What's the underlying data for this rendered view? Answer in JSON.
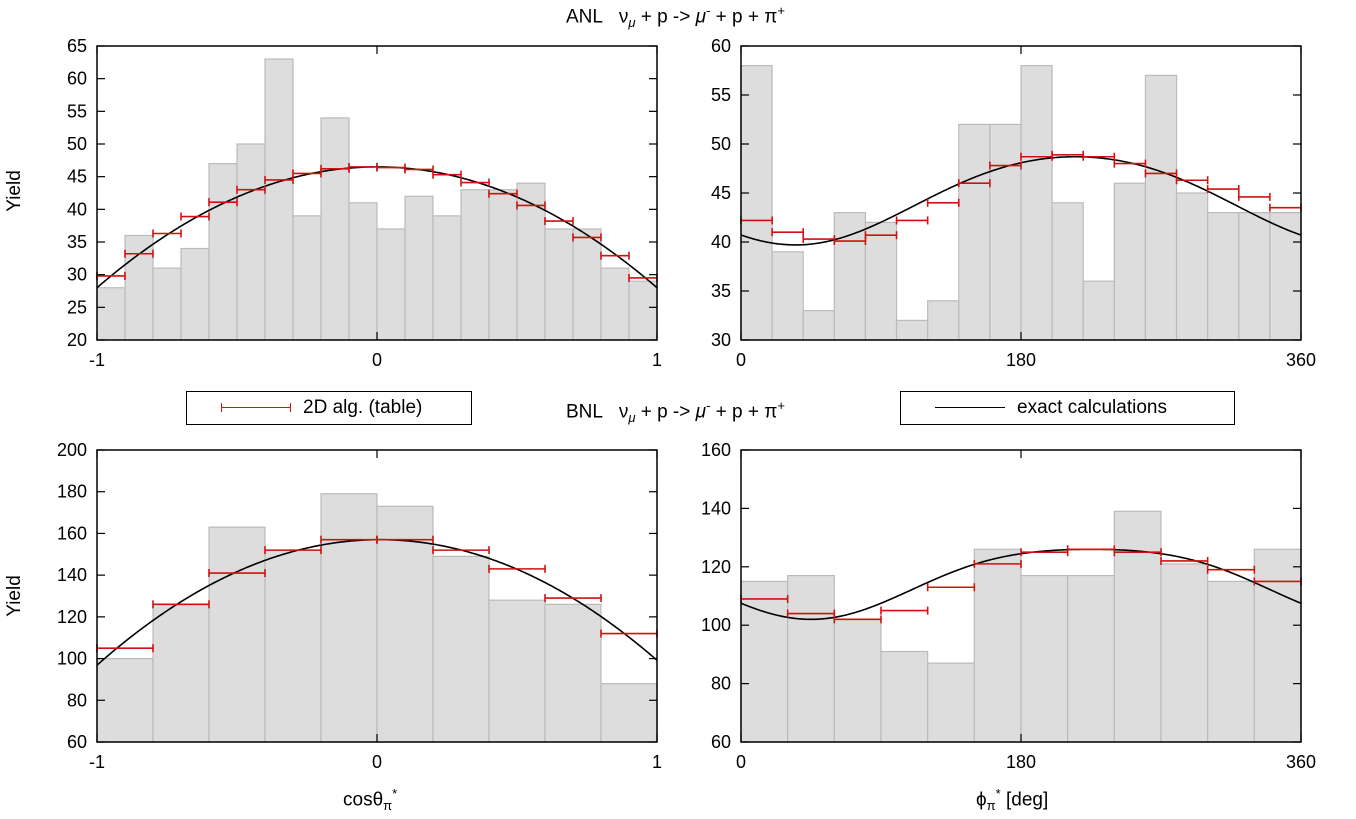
{
  "titles": {
    "top": {
      "exp": "ANL",
      "nu": "ν",
      "nu_sub": "μ",
      "mid": " + p -> ",
      "mu": "μ",
      "mu_sup": "-",
      "end": " + p + π",
      "pi_sup": "+"
    },
    "bottom": {
      "exp": "BNL",
      "nu": "ν",
      "nu_sub": "μ",
      "mid": " + p -> ",
      "mu": "μ",
      "mu_sup": "-",
      "end": " + p + π",
      "pi_sup": "+"
    }
  },
  "ylabel": "Yield",
  "xlabels": {
    "cos": {
      "base": "cosθ",
      "sub": "π",
      "sup": "*",
      "unit": ""
    },
    "phi": {
      "base": "ϕ",
      "sub": "π",
      "sup": "*",
      "unit": " [deg]"
    }
  },
  "legend": {
    "hist_label": "2D alg. (table)",
    "line_label": "exact calculations"
  },
  "colors": {
    "bar_fill": "#dddddd",
    "bar_edge": "#bbbbbb",
    "errorbar": "#d11111",
    "curve": "#000000"
  },
  "chart_data": [
    {
      "id": "anl-cos",
      "type": "bar",
      "panel": "top-left",
      "xlim": [
        -1,
        1
      ],
      "ylim": [
        20,
        65
      ],
      "xticks": [
        -1,
        0,
        1
      ],
      "xtick_labels": [
        "-1",
        "0",
        "1"
      ],
      "yticks": [
        20,
        25,
        30,
        35,
        40,
        45,
        50,
        55,
        60,
        65
      ],
      "bins_edges": [
        -1,
        -0.9,
        -0.8,
        -0.7,
        -0.6,
        -0.5,
        -0.4,
        -0.3,
        -0.2,
        -0.1,
        0,
        0.1,
        0.2,
        0.3,
        0.4,
        0.5,
        0.6,
        0.7,
        0.8,
        0.9,
        1
      ],
      "data_values": [
        28,
        36,
        31,
        34,
        47,
        50,
        63,
        39,
        54,
        41,
        37,
        42,
        39,
        43,
        43,
        44,
        37,
        37,
        31,
        29
      ],
      "algo_values": [
        29.8,
        33.2,
        36.3,
        38.9,
        41.1,
        43.0,
        44.5,
        45.5,
        46.2,
        46.5,
        46.4,
        46.1,
        45.3,
        44.1,
        42.4,
        40.6,
        38.2,
        35.7,
        32.9,
        29.5
      ],
      "curve": {
        "kind": "cos",
        "a": 46.5,
        "b": 18.5,
        "c0": 0
      }
    },
    {
      "id": "anl-phi",
      "type": "bar",
      "panel": "top-right",
      "xlim": [
        0,
        360
      ],
      "ylim": [
        30,
        60
      ],
      "xticks": [
        0,
        180,
        360
      ],
      "xtick_labels": [
        "0",
        "180",
        "360"
      ],
      "yticks": [
        30,
        35,
        40,
        45,
        50,
        55,
        60
      ],
      "bins_edges": [
        0,
        20,
        40,
        60,
        80,
        100,
        120,
        140,
        160,
        180,
        200,
        220,
        240,
        260,
        280,
        300,
        320,
        340,
        360
      ],
      "data_values": [
        58,
        39,
        33,
        43,
        42,
        32,
        34,
        52,
        52,
        58,
        44,
        36,
        46,
        57,
        45,
        43,
        43,
        43
      ],
      "algo_values": [
        42.2,
        41.0,
        40.3,
        40.1,
        40.7,
        42.2,
        44.0,
        46.0,
        47.8,
        48.7,
        48.9,
        48.7,
        48.0,
        47.0,
        46.3,
        45.4,
        44.6,
        43.5
      ],
      "curve": {
        "kind": "phi",
        "a": 44.5,
        "b": 4.5,
        "c": -0.3,
        "phase": 215
      }
    },
    {
      "id": "bnl-cos",
      "type": "bar",
      "panel": "bottom-left",
      "xlim": [
        -1,
        1
      ],
      "ylim": [
        60,
        200
      ],
      "xticks": [
        -1,
        0,
        1
      ],
      "xtick_labels": [
        "-1",
        "0",
        "1"
      ],
      "yticks": [
        60,
        80,
        100,
        120,
        140,
        160,
        180,
        200
      ],
      "bins_edges": [
        -1,
        -0.8,
        -0.6,
        -0.4,
        -0.2,
        0,
        0.2,
        0.4,
        0.6,
        0.8,
        1
      ],
      "data_values": [
        100,
        126,
        163,
        152,
        179,
        173,
        149,
        128,
        126,
        88
      ],
      "algo_values": [
        105,
        126,
        141,
        152,
        157,
        157,
        152,
        143,
        129,
        112
      ],
      "curve": {
        "kind": "cos",
        "a": 157,
        "b": 59,
        "c0": 0.01
      }
    },
    {
      "id": "bnl-phi",
      "type": "bar",
      "panel": "bottom-right",
      "xlim": [
        0,
        360
      ],
      "ylim": [
        60,
        160
      ],
      "xticks": [
        0,
        180,
        360
      ],
      "xtick_labels": [
        "0",
        "180",
        "360"
      ],
      "yticks": [
        60,
        80,
        100,
        120,
        140,
        160
      ],
      "bins_edges": [
        0,
        30,
        60,
        90,
        120,
        150,
        180,
        210,
        240,
        270,
        300,
        330,
        360
      ],
      "data_values": [
        115,
        117,
        102,
        91,
        87,
        126,
        117,
        117,
        139,
        121,
        115,
        126
      ],
      "algo_values": [
        109,
        104,
        102,
        105,
        113,
        121,
        125,
        126,
        125,
        122,
        119,
        115
      ],
      "curve": {
        "kind": "phi",
        "a": 116,
        "b": 12,
        "c": -2,
        "phase": 225
      }
    }
  ]
}
